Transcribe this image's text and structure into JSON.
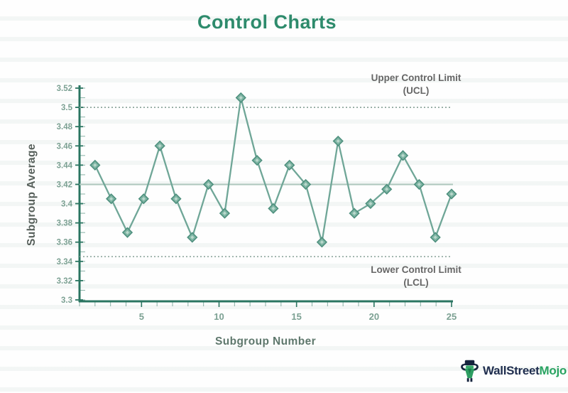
{
  "header": {
    "title": "Control Charts"
  },
  "chart_data": {
    "type": "line",
    "title": "Control Charts",
    "xlabel": "Subgroup Number",
    "ylabel": "Subgroup Average",
    "x_range": [
      2,
      25
    ],
    "values": [
      3.44,
      3.405,
      3.37,
      3.405,
      3.46,
      3.405,
      3.365,
      3.42,
      3.39,
      3.51,
      3.445,
      3.395,
      3.44,
      3.42,
      3.36,
      3.465,
      3.39,
      3.4,
      3.415,
      3.45,
      3.42,
      3.365,
      3.41
    ],
    "center_line": 3.42,
    "ucl": 3.5,
    "lcl": 3.345,
    "ucl_label": [
      "Upper Control Limit",
      "(UCL)"
    ],
    "lcl_label": [
      "Lower Control Limit",
      "(LCL)"
    ],
    "ylim": [
      3.3,
      3.52
    ],
    "yticks": [
      "3.52",
      "3.5",
      "3.48",
      "3.46",
      "3.44",
      "3.42",
      "3.4",
      "3.38",
      "3.36",
      "3.34",
      "3.32",
      "3.3"
    ],
    "xticks": [
      "5",
      "10",
      "15",
      "20",
      "25"
    ],
    "xlim": [
      1,
      25
    ],
    "x_minor_tick_step": 1,
    "y_minor_tick_step": 0.01,
    "grid": false,
    "legend": "none",
    "marker": "diamond",
    "colors": {
      "series": "#6fa697",
      "marker_fill": "#7fb5a4",
      "marker_stroke": "#4e907e",
      "marker_inner": "#b9d8cc",
      "axis": "#2a7561",
      "tick_label": "#7ca193",
      "limit_line": "#8fa79d",
      "center_line": "#afc8be",
      "title": "#2e8b6c",
      "label_text": "#666666"
    }
  },
  "branding": {
    "name_primary": "WallStreet",
    "name_accent": "Mojo",
    "accent_color": "#29a361",
    "primary_color": "#1f2d4e"
  }
}
